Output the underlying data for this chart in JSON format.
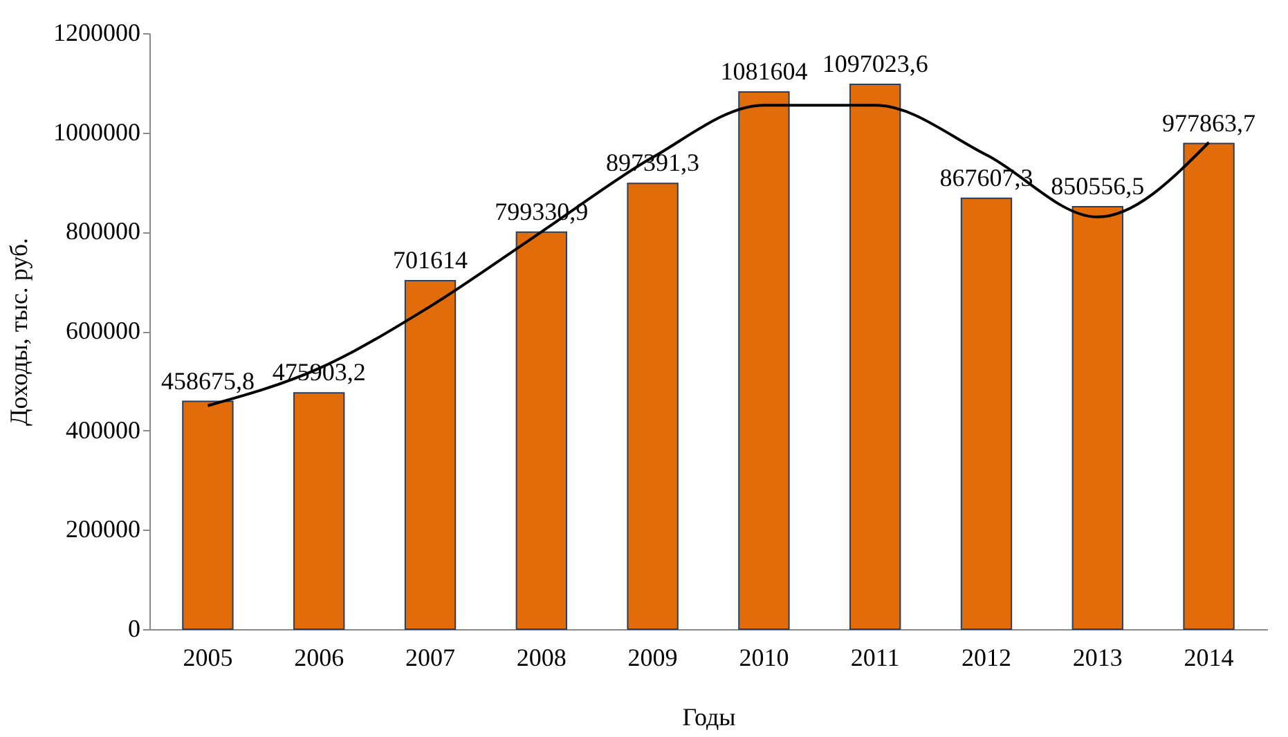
{
  "chart_data": {
    "type": "bar",
    "xlabel": "Годы",
    "ylabel": "Доходы, тыс. руб.",
    "categories": [
      "2005",
      "2006",
      "2007",
      "2008",
      "2009",
      "2010",
      "2011",
      "2012",
      "2013",
      "2014"
    ],
    "series": [
      {
        "color": "#e36c0a",
        "values": [
          458675.8,
          475903.2,
          701614,
          799330.9,
          897391.3,
          1081604,
          1097023.6,
          867607.3,
          850556.5,
          977863.7
        ],
        "value_labels": [
          "458675,8",
          "475903,2",
          "701614",
          "799330,9",
          "897391,3",
          "1081604",
          "1097023,6",
          "867607,3",
          "850556,5",
          "977863,7"
        ]
      },
      {
        "type": "line",
        "color": "#000000",
        "values": [
          450000,
          525000,
          650000,
          800000,
          950000,
          1055000,
          1055000,
          955000,
          830000,
          980000
        ]
      }
    ],
    "ylim": [
      0,
      1200000
    ],
    "yticks": [
      0,
      200000,
      400000,
      600000,
      800000,
      1000000,
      1200000
    ],
    "grid": false
  }
}
